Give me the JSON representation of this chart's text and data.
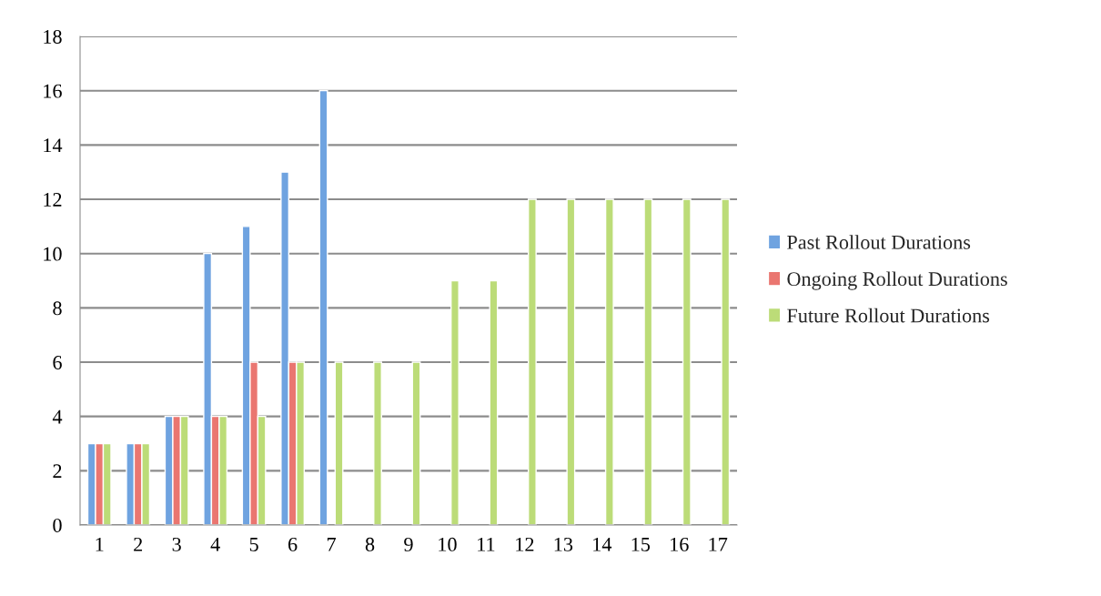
{
  "chart_data": {
    "type": "bar",
    "categories": [
      "1",
      "2",
      "3",
      "4",
      "5",
      "6",
      "7",
      "8",
      "9",
      "10",
      "11",
      "12",
      "13",
      "14",
      "15",
      "16",
      "17"
    ],
    "series": [
      {
        "name": "Past Rollout Durations",
        "color": "#6fa3e0",
        "values": [
          3,
          3,
          4,
          10,
          11,
          13,
          16,
          null,
          null,
          null,
          null,
          null,
          null,
          null,
          null,
          null,
          null
        ]
      },
      {
        "name": "Ongoing Rollout Durations",
        "color": "#ea7670",
        "values": [
          3,
          3,
          4,
          4,
          6,
          6,
          null,
          null,
          null,
          null,
          null,
          null,
          null,
          null,
          null,
          null,
          null
        ]
      },
      {
        "name": "Future Rollout Durations",
        "color": "#bcdc78",
        "values": [
          3,
          3,
          4,
          4,
          4,
          6,
          6,
          6,
          6,
          9,
          9,
          12,
          12,
          12,
          12,
          12,
          12
        ]
      }
    ],
    "ylim": [
      0,
      18
    ],
    "yticks": [
      0,
      2,
      4,
      6,
      8,
      10,
      12,
      14,
      16,
      18
    ],
    "grid": "y",
    "legend": "right"
  }
}
